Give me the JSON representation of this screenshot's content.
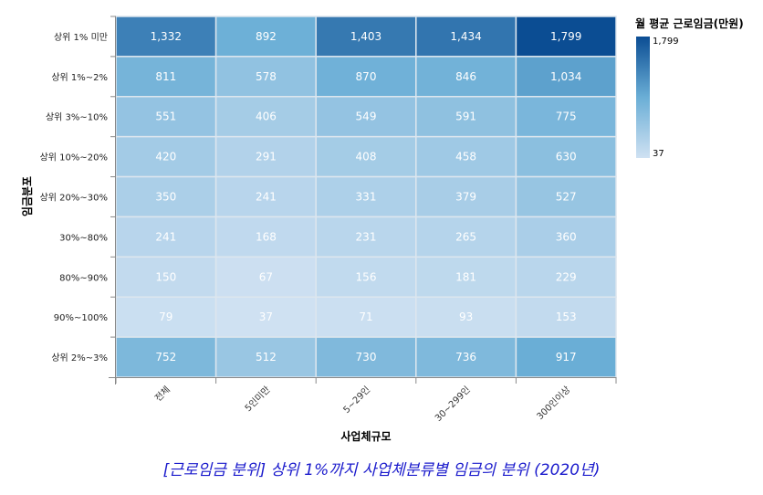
{
  "chart_data": {
    "type": "heatmap",
    "title": "[근로임금 분위] 상위 1%까지 사업체분류별 임금의 분위 (2020년)",
    "xlabel": "사업체규모",
    "ylabel": "임금분포",
    "legend_title": "월 평균 근로임금(만원)",
    "legend_max_label": "1,799",
    "legend_min_label": "37",
    "color_range": [
      37,
      1799
    ],
    "color_low": "#cfe1f2",
    "color_mid": "#6aaed6",
    "color_high": "#0b4d93",
    "x": [
      "전체",
      "5인미만",
      "5~29인",
      "30~299인",
      "300인이상"
    ],
    "y": [
      "상위 1% 미만",
      "상위 1%~2%",
      "상위 3%~10%",
      "상위 10%~20%",
      "상위 20%~30%",
      "30%~80%",
      "80%~90%",
      "90%~100%",
      "상위 2%~3%"
    ],
    "values": [
      [
        1332,
        892,
        1403,
        1434,
        1799
      ],
      [
        811,
        578,
        870,
        846,
        1034
      ],
      [
        551,
        406,
        549,
        591,
        775
      ],
      [
        420,
        291,
        408,
        458,
        630
      ],
      [
        350,
        241,
        331,
        379,
        527
      ],
      [
        241,
        168,
        231,
        265,
        360
      ],
      [
        150,
        67,
        156,
        181,
        229
      ],
      [
        79,
        37,
        71,
        93,
        153
      ],
      [
        752,
        512,
        730,
        736,
        917
      ]
    ]
  }
}
